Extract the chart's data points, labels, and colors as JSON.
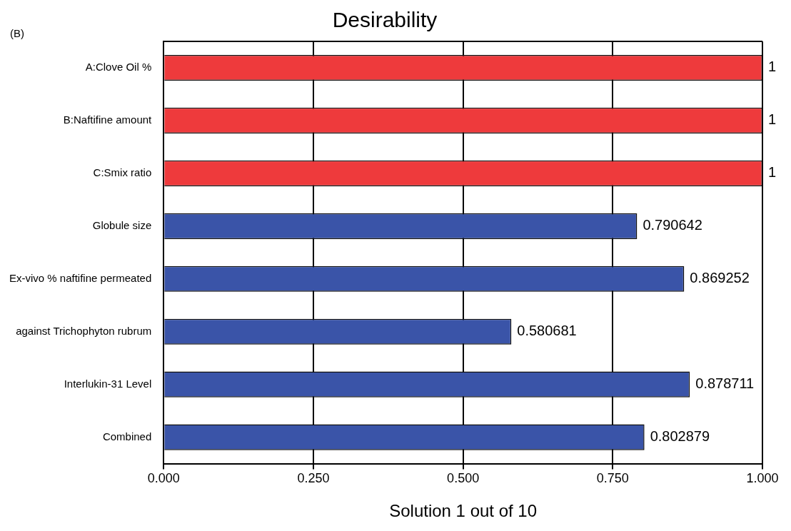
{
  "chart_data": {
    "type": "bar",
    "orientation": "horizontal",
    "title": "Desirability",
    "xlabel": "Solution 1 out of 10",
    "annotations": [
      "(B)"
    ],
    "categories": [
      "A:Clove Oil %",
      "B:Naftifine amount",
      "C:Smix ratio",
      "Globule size",
      "Ex-vivo % naftifine permeated",
      "against Trichophyton rubrum",
      "Interlukin-31 Level",
      "Combined"
    ],
    "values": [
      1,
      1,
      1,
      0.790642,
      0.869252,
      0.580681,
      0.878711,
      0.802879
    ],
    "colors": [
      "#ee3a3c",
      "#ee3a3c",
      "#ee3a3c",
      "#3a54a8",
      "#3a54a8",
      "#3a54a8",
      "#3a54a8",
      "#3a54a8"
    ],
    "xlim": [
      0,
      1
    ],
    "xticks": [
      {
        "value": 0,
        "label": "0.000"
      },
      {
        "value": 0.25,
        "label": "0.250"
      },
      {
        "value": 0.5,
        "label": "0.500"
      },
      {
        "value": 0.75,
        "label": "0.750"
      },
      {
        "value": 1,
        "label": "1.000"
      }
    ],
    "grid": "x",
    "data_labels": true
  }
}
